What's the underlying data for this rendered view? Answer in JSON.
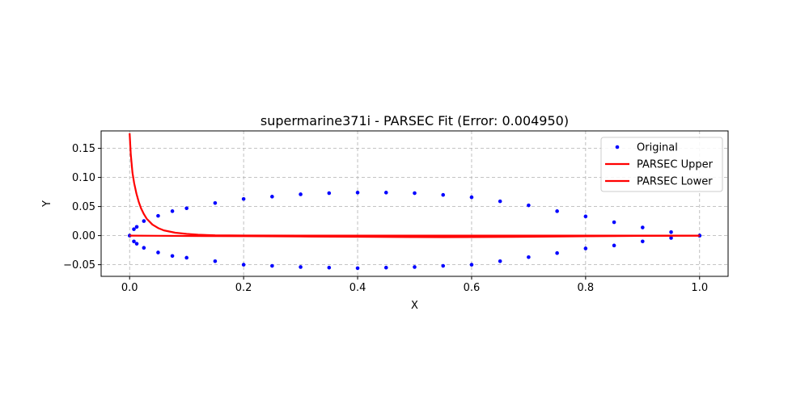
{
  "chart_data": {
    "type": "scatter",
    "title": "supermarine371i - PARSEC Fit (Error: 0.004950)",
    "xlabel": "X",
    "ylabel": "Y",
    "xlim": [
      -0.05,
      1.05
    ],
    "ylim": [
      -0.07,
      0.18
    ],
    "xticks": [
      0.0,
      0.2,
      0.4,
      0.6,
      0.8,
      1.0
    ],
    "xtick_labels": [
      "0.0",
      "0.2",
      "0.4",
      "0.6",
      "0.8",
      "1.0"
    ],
    "yticks": [
      -0.05,
      0.0,
      0.05,
      0.1,
      0.15
    ],
    "ytick_labels": [
      "−0.05",
      "0.00",
      "0.05",
      "0.10",
      "0.15"
    ],
    "grid": true,
    "legend_position": "upper-right",
    "series": [
      {
        "name": "Original",
        "kind": "scatter",
        "color": "#0000ff",
        "x": [
          1.0,
          0.95,
          0.9,
          0.85,
          0.8,
          0.75,
          0.7,
          0.65,
          0.6,
          0.55,
          0.5,
          0.45,
          0.4,
          0.35,
          0.3,
          0.25,
          0.2,
          0.15,
          0.1,
          0.075,
          0.05,
          0.025,
          0.0125,
          0.0075,
          0.0,
          0.0075,
          0.0125,
          0.025,
          0.05,
          0.075,
          0.1,
          0.15,
          0.2,
          0.25,
          0.3,
          0.35,
          0.4,
          0.45,
          0.5,
          0.55,
          0.6,
          0.65,
          0.7,
          0.75,
          0.8,
          0.85,
          0.9,
          0.95,
          1.0
        ],
        "y": [
          0.0,
          0.006,
          0.014,
          0.023,
          0.033,
          0.042,
          0.052,
          0.059,
          0.066,
          0.07,
          0.073,
          0.074,
          0.074,
          0.073,
          0.071,
          0.067,
          0.063,
          0.056,
          0.047,
          0.042,
          0.034,
          0.025,
          0.015,
          0.011,
          0.0,
          -0.01,
          -0.014,
          -0.021,
          -0.029,
          -0.035,
          -0.038,
          -0.044,
          -0.05,
          -0.052,
          -0.054,
          -0.055,
          -0.056,
          -0.055,
          -0.054,
          -0.052,
          -0.05,
          -0.044,
          -0.037,
          -0.03,
          -0.022,
          -0.017,
          -0.01,
          -0.004,
          0.0
        ]
      },
      {
        "name": "PARSEC Upper",
        "kind": "line",
        "color": "#ff0000",
        "x": [
          0.0,
          0.002,
          0.005,
          0.008,
          0.012,
          0.016,
          0.02,
          0.025,
          0.03,
          0.04,
          0.05,
          0.06,
          0.08,
          0.1,
          0.12,
          0.15,
          0.2,
          0.3,
          0.4,
          0.5,
          0.6,
          0.7,
          0.8,
          0.9,
          1.0
        ],
        "y": [
          0.176,
          0.14,
          0.108,
          0.09,
          0.072,
          0.058,
          0.047,
          0.037,
          0.029,
          0.019,
          0.013,
          0.009,
          0.005,
          0.003,
          0.0015,
          0.0006,
          0.0002,
          0.0,
          0.0,
          0.0,
          0.0,
          0.0,
          0.0,
          0.0,
          0.0
        ]
      },
      {
        "name": "PARSEC Lower",
        "kind": "line",
        "color": "#ff0000",
        "x": [
          0.0,
          0.05,
          0.1,
          0.2,
          0.3,
          0.4,
          0.5,
          0.55,
          0.6,
          0.7,
          0.8,
          0.9,
          1.0
        ],
        "y": [
          0.0,
          -0.0003,
          -0.0006,
          -0.001,
          -0.0015,
          -0.002,
          -0.0025,
          -0.0027,
          -0.0025,
          -0.002,
          -0.0012,
          -0.0005,
          0.0
        ]
      }
    ]
  }
}
